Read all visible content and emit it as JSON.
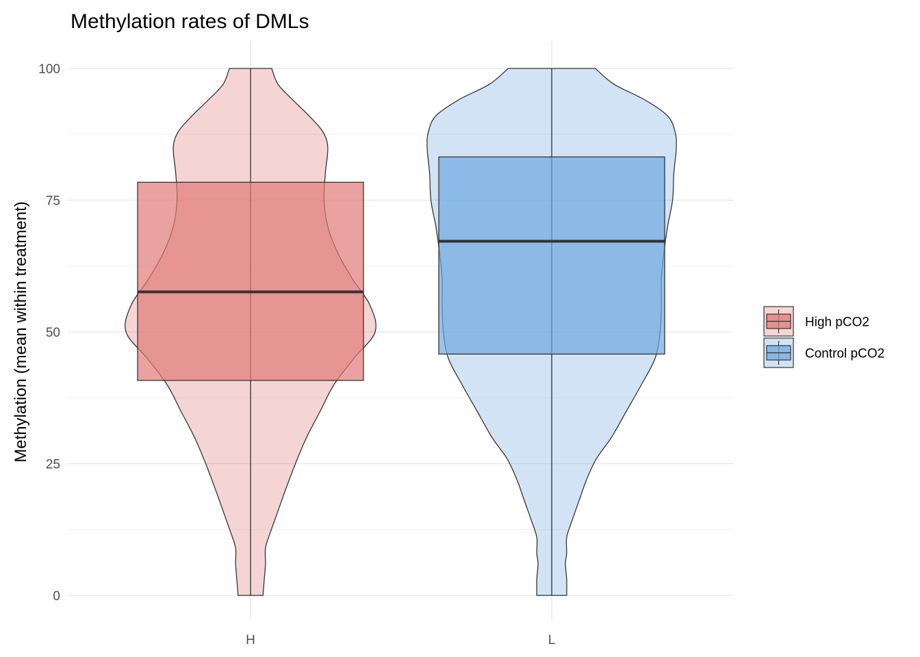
{
  "chart_data": {
    "type": "violin+box",
    "title": "Methylation rates of DMLs",
    "xlabel": "",
    "ylabel": "Methylation (mean within treatment)",
    "ylim": [
      0,
      100
    ],
    "y_ticks": [
      0,
      25,
      50,
      75,
      100
    ],
    "categories": [
      "H",
      "L"
    ],
    "grid": true,
    "legend_position": "right",
    "series": [
      {
        "name": "High pCO2",
        "category": "H",
        "color": "#e07a78",
        "box": {
          "q1": 40.8,
          "median": 57.6,
          "q3": 78.4,
          "min": 0,
          "max": 100
        },
        "violin_profile": [
          [
            0,
            0.1
          ],
          [
            3,
            0.11
          ],
          [
            6,
            0.12
          ],
          [
            9,
            0.12
          ],
          [
            12,
            0.16
          ],
          [
            16,
            0.22
          ],
          [
            20,
            0.28
          ],
          [
            25,
            0.36
          ],
          [
            30,
            0.45
          ],
          [
            35,
            0.56
          ],
          [
            40,
            0.67
          ],
          [
            45,
            0.83
          ],
          [
            50,
            1.0
          ],
          [
            55,
            0.96
          ],
          [
            60,
            0.82
          ],
          [
            65,
            0.7
          ],
          [
            70,
            0.62
          ],
          [
            75,
            0.59
          ],
          [
            80,
            0.6
          ],
          [
            85,
            0.62
          ],
          [
            88,
            0.58
          ],
          [
            91,
            0.47
          ],
          [
            94,
            0.34
          ],
          [
            97,
            0.22
          ],
          [
            100,
            0.17
          ]
        ]
      },
      {
        "name": "Control pCO2",
        "category": "L",
        "color": "#6fa8e0",
        "box": {
          "q1": 45.8,
          "median": 67.2,
          "q3": 83.2,
          "min": 0,
          "max": 100
        },
        "violin_profile": [
          [
            0,
            0.12
          ],
          [
            3,
            0.12
          ],
          [
            6,
            0.11
          ],
          [
            8,
            0.12
          ],
          [
            11,
            0.12
          ],
          [
            14,
            0.16
          ],
          [
            18,
            0.22
          ],
          [
            22,
            0.28
          ],
          [
            26,
            0.36
          ],
          [
            30,
            0.48
          ],
          [
            35,
            0.6
          ],
          [
            40,
            0.72
          ],
          [
            45,
            0.83
          ],
          [
            50,
            0.87
          ],
          [
            55,
            0.88
          ],
          [
            60,
            0.88
          ],
          [
            65,
            0.9
          ],
          [
            70,
            0.93
          ],
          [
            75,
            0.97
          ],
          [
            80,
            0.98
          ],
          [
            85,
            1.0
          ],
          [
            88,
            0.99
          ],
          [
            91,
            0.93
          ],
          [
            94,
            0.75
          ],
          [
            97,
            0.5
          ],
          [
            100,
            0.35
          ]
        ]
      }
    ]
  }
}
